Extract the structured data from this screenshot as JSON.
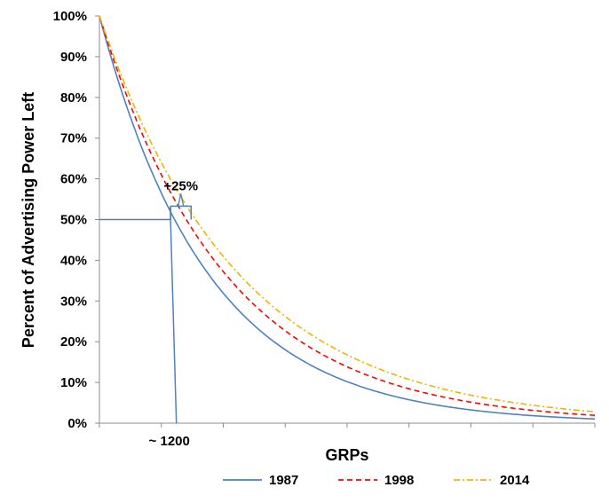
{
  "chart_data": {
    "type": "line",
    "title": "",
    "xlabel": "GRPs",
    "ylabel": "Percent of Advertising Power Left",
    "ylim": [
      0,
      100
    ],
    "yticks": [
      "0%",
      "10%",
      "20%",
      "30%",
      "40%",
      "50%",
      "60%",
      "70%",
      "80%",
      "90%",
      "100%"
    ],
    "xlim": [
      0,
      8000
    ],
    "x_tick_count": 8,
    "grid": false,
    "legend_position": "bottom",
    "series": [
      {
        "name": "1987",
        "color": "#4f81bd",
        "dash": "solid",
        "decay_per_1000_grps": 0.565,
        "half_life_grps": 1200
      },
      {
        "name": "1998",
        "color": "#ff0000",
        "dash": "dashed",
        "decay_per_1000_grps": 0.61,
        "half_life_grps": 1410
      },
      {
        "name": "2014",
        "color": "#f0b400",
        "dash": "dashdot",
        "decay_per_1000_grps": 0.64,
        "half_life_grps": 1550
      }
    ],
    "annotations": {
      "half_life_label": "~ 1200",
      "half_life_grps": 1200,
      "reference_level": 50,
      "increase_label": "+25%"
    }
  }
}
